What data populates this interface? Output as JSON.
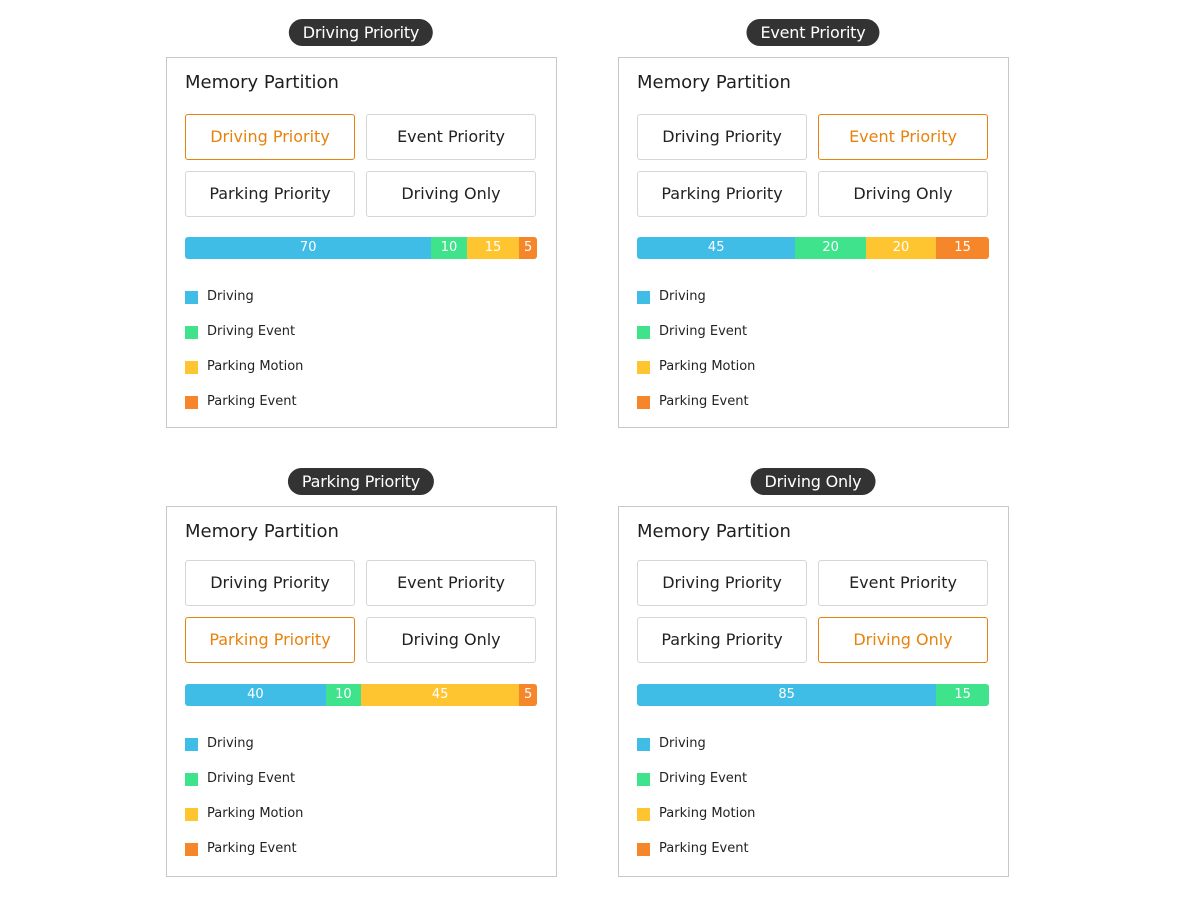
{
  "colors": {
    "driving": "#3fbde6",
    "driving_event": "#3ee38b",
    "parking_motion": "#ffc530",
    "parking_event": "#f5862a",
    "selected": "#e8820c"
  },
  "panels": [
    {
      "pill_label": "Driving Priority",
      "card_title": "Memory Partition",
      "options": [
        "Driving Priority",
        "Event Priority",
        "Parking Priority",
        "Driving Only"
      ],
      "selected_index": 0,
      "segments": [
        {
          "label": "70",
          "value": 70,
          "color": "#3fbde6"
        },
        {
          "label": "10",
          "value": 10,
          "color": "#3ee38b"
        },
        {
          "label": "15",
          "value": 15,
          "color": "#ffc530"
        },
        {
          "label": "5",
          "value": 5,
          "color": "#f5862a"
        }
      ],
      "legend": [
        {
          "label": "Driving",
          "color": "#3fbde6"
        },
        {
          "label": "Driving Event",
          "color": "#3ee38b"
        },
        {
          "label": "Parking Motion",
          "color": "#ffc530"
        },
        {
          "label": "Parking Event",
          "color": "#f5862a"
        }
      ]
    },
    {
      "pill_label": "Event Priority",
      "card_title": "Memory Partition",
      "options": [
        "Driving Priority",
        "Event Priority",
        "Parking Priority",
        "Driving Only"
      ],
      "selected_index": 1,
      "segments": [
        {
          "label": "45",
          "value": 45,
          "color": "#3fbde6"
        },
        {
          "label": "20",
          "value": 20,
          "color": "#3ee38b"
        },
        {
          "label": "20",
          "value": 20,
          "color": "#ffc530"
        },
        {
          "label": "15",
          "value": 15,
          "color": "#f5862a"
        }
      ],
      "legend": [
        {
          "label": "Driving",
          "color": "#3fbde6"
        },
        {
          "label": "Driving Event",
          "color": "#3ee38b"
        },
        {
          "label": "Parking Motion",
          "color": "#ffc530"
        },
        {
          "label": "Parking Event",
          "color": "#f5862a"
        }
      ]
    },
    {
      "pill_label": "Parking Priority",
      "card_title": "Memory Partition",
      "options": [
        "Driving Priority",
        "Event Priority",
        "Parking Priority",
        "Driving Only"
      ],
      "selected_index": 2,
      "segments": [
        {
          "label": "40",
          "value": 40,
          "color": "#3fbde6"
        },
        {
          "label": "10",
          "value": 10,
          "color": "#3ee38b"
        },
        {
          "label": "45",
          "value": 45,
          "color": "#ffc530"
        },
        {
          "label": "5",
          "value": 5,
          "color": "#f5862a"
        }
      ],
      "legend": [
        {
          "label": "Driving",
          "color": "#3fbde6"
        },
        {
          "label": "Driving Event",
          "color": "#3ee38b"
        },
        {
          "label": "Parking Motion",
          "color": "#ffc530"
        },
        {
          "label": "Parking Event",
          "color": "#f5862a"
        }
      ]
    },
    {
      "pill_label": "Driving Only",
      "card_title": "Memory Partition",
      "options": [
        "Driving Priority",
        "Event Priority",
        "Parking Priority",
        "Driving Only"
      ],
      "selected_index": 3,
      "segments": [
        {
          "label": "85",
          "value": 85,
          "color": "#3fbde6"
        },
        {
          "label": "15",
          "value": 15,
          "color": "#3ee38b"
        }
      ],
      "legend": [
        {
          "label": "Driving",
          "color": "#3fbde6"
        },
        {
          "label": "Driving Event",
          "color": "#3ee38b"
        },
        {
          "label": "Parking Motion",
          "color": "#ffc530"
        },
        {
          "label": "Parking Event",
          "color": "#f5862a"
        }
      ]
    }
  ]
}
